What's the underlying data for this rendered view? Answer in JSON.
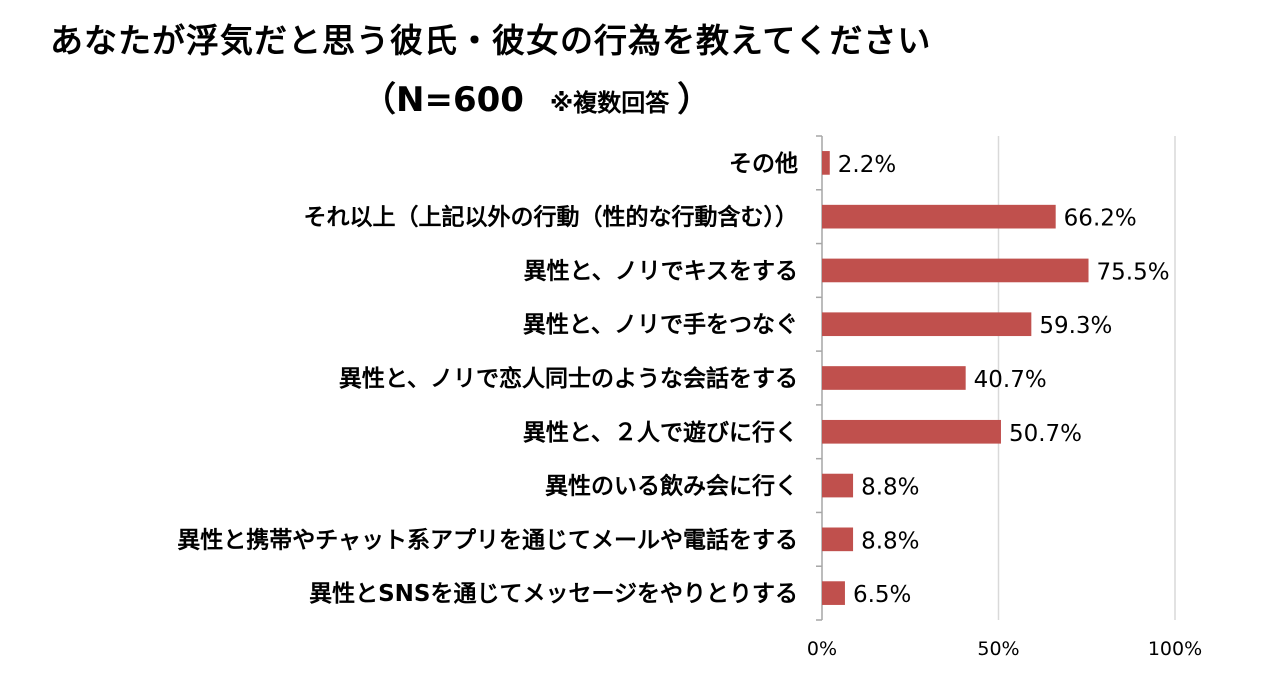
{
  "title": {
    "line1": "あなたが浮気だと思う彼氏・彼女の行為を教えてください",
    "open_paren": "（",
    "n_label": "N=600",
    "note": "※複数回答",
    "close_paren": "）"
  },
  "chart_data": {
    "type": "bar",
    "orientation": "horizontal",
    "categories": [
      "その他",
      "それ以上（上記以外の行動（性的な行動含む））",
      "異性と、ノリでキスをする",
      "異性と、ノリで手をつなぐ",
      "異性と、ノリで恋人同士のような会話をする",
      "異性と、２人で遊びに行く",
      "異性のいる飲み会に行く",
      "異性と携帯やチャット系アプリを通じてメールや電話をする",
      "異性とSNSを通じてメッセージをやりとりする"
    ],
    "values": [
      2.2,
      66.2,
      75.5,
      59.3,
      40.7,
      50.7,
      8.8,
      8.8,
      6.5
    ],
    "value_labels": [
      "2.2%",
      "66.2%",
      "75.5%",
      "59.3%",
      "40.7%",
      "50.7%",
      "8.8%",
      "8.8%",
      "6.5%"
    ],
    "xlim": [
      0,
      100
    ],
    "xticks": [
      0,
      50,
      100
    ],
    "xtick_labels": [
      "0%",
      "50%",
      "100%"
    ],
    "bar_color": "#c0504d",
    "grid": true,
    "grid_color": "#d9d9d9",
    "legend": "none"
  }
}
